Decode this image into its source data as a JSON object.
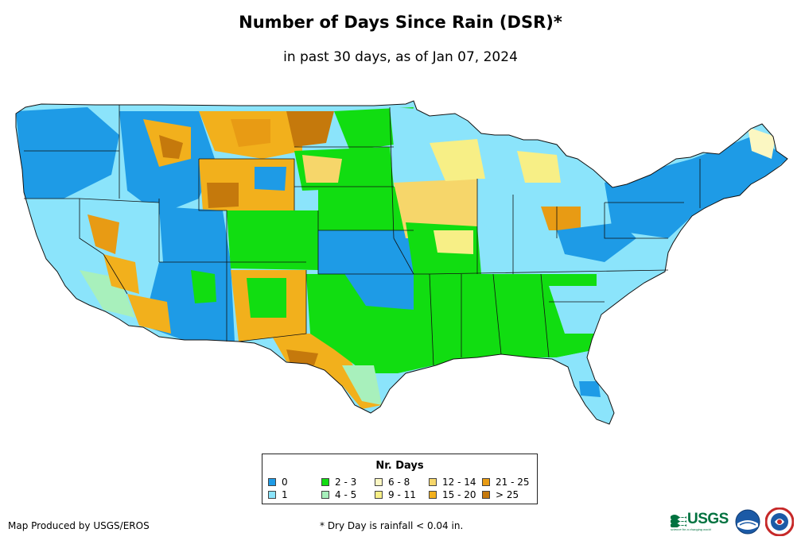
{
  "title": "Number of Days Since Rain (DSR)*",
  "subtitle": "in past 30 days, as of Jan 07, 2024",
  "legend": {
    "title": "Nr. Days",
    "items": [
      {
        "label": "0",
        "color": "#1e9be6"
      },
      {
        "label": "1",
        "color": "#8be4fb"
      },
      {
        "label": "2 - 3",
        "color": "#11dd11"
      },
      {
        "label": "4 - 5",
        "color": "#a8f0bc"
      },
      {
        "label": "6 - 8",
        "color": "#fbf7c2"
      },
      {
        "label": "9 - 11",
        "color": "#f7ef86"
      },
      {
        "label": "12 - 14",
        "color": "#f6d66a"
      },
      {
        "label": "15 - 20",
        "color": "#f2b01c"
      },
      {
        "label": "21 - 25",
        "color": "#e89b14"
      },
      {
        "label": "> 25",
        "color": "#c5790c"
      }
    ]
  },
  "footer": {
    "producer": "Map Produced by USGS/EROS",
    "note": "* Dry Day is rainfall < 0.04 in."
  },
  "logos": {
    "usgs": "USGS",
    "usgs_tagline": "science for a changing world",
    "noaa": "noaa-logo",
    "nws": "nws-logo"
  }
}
